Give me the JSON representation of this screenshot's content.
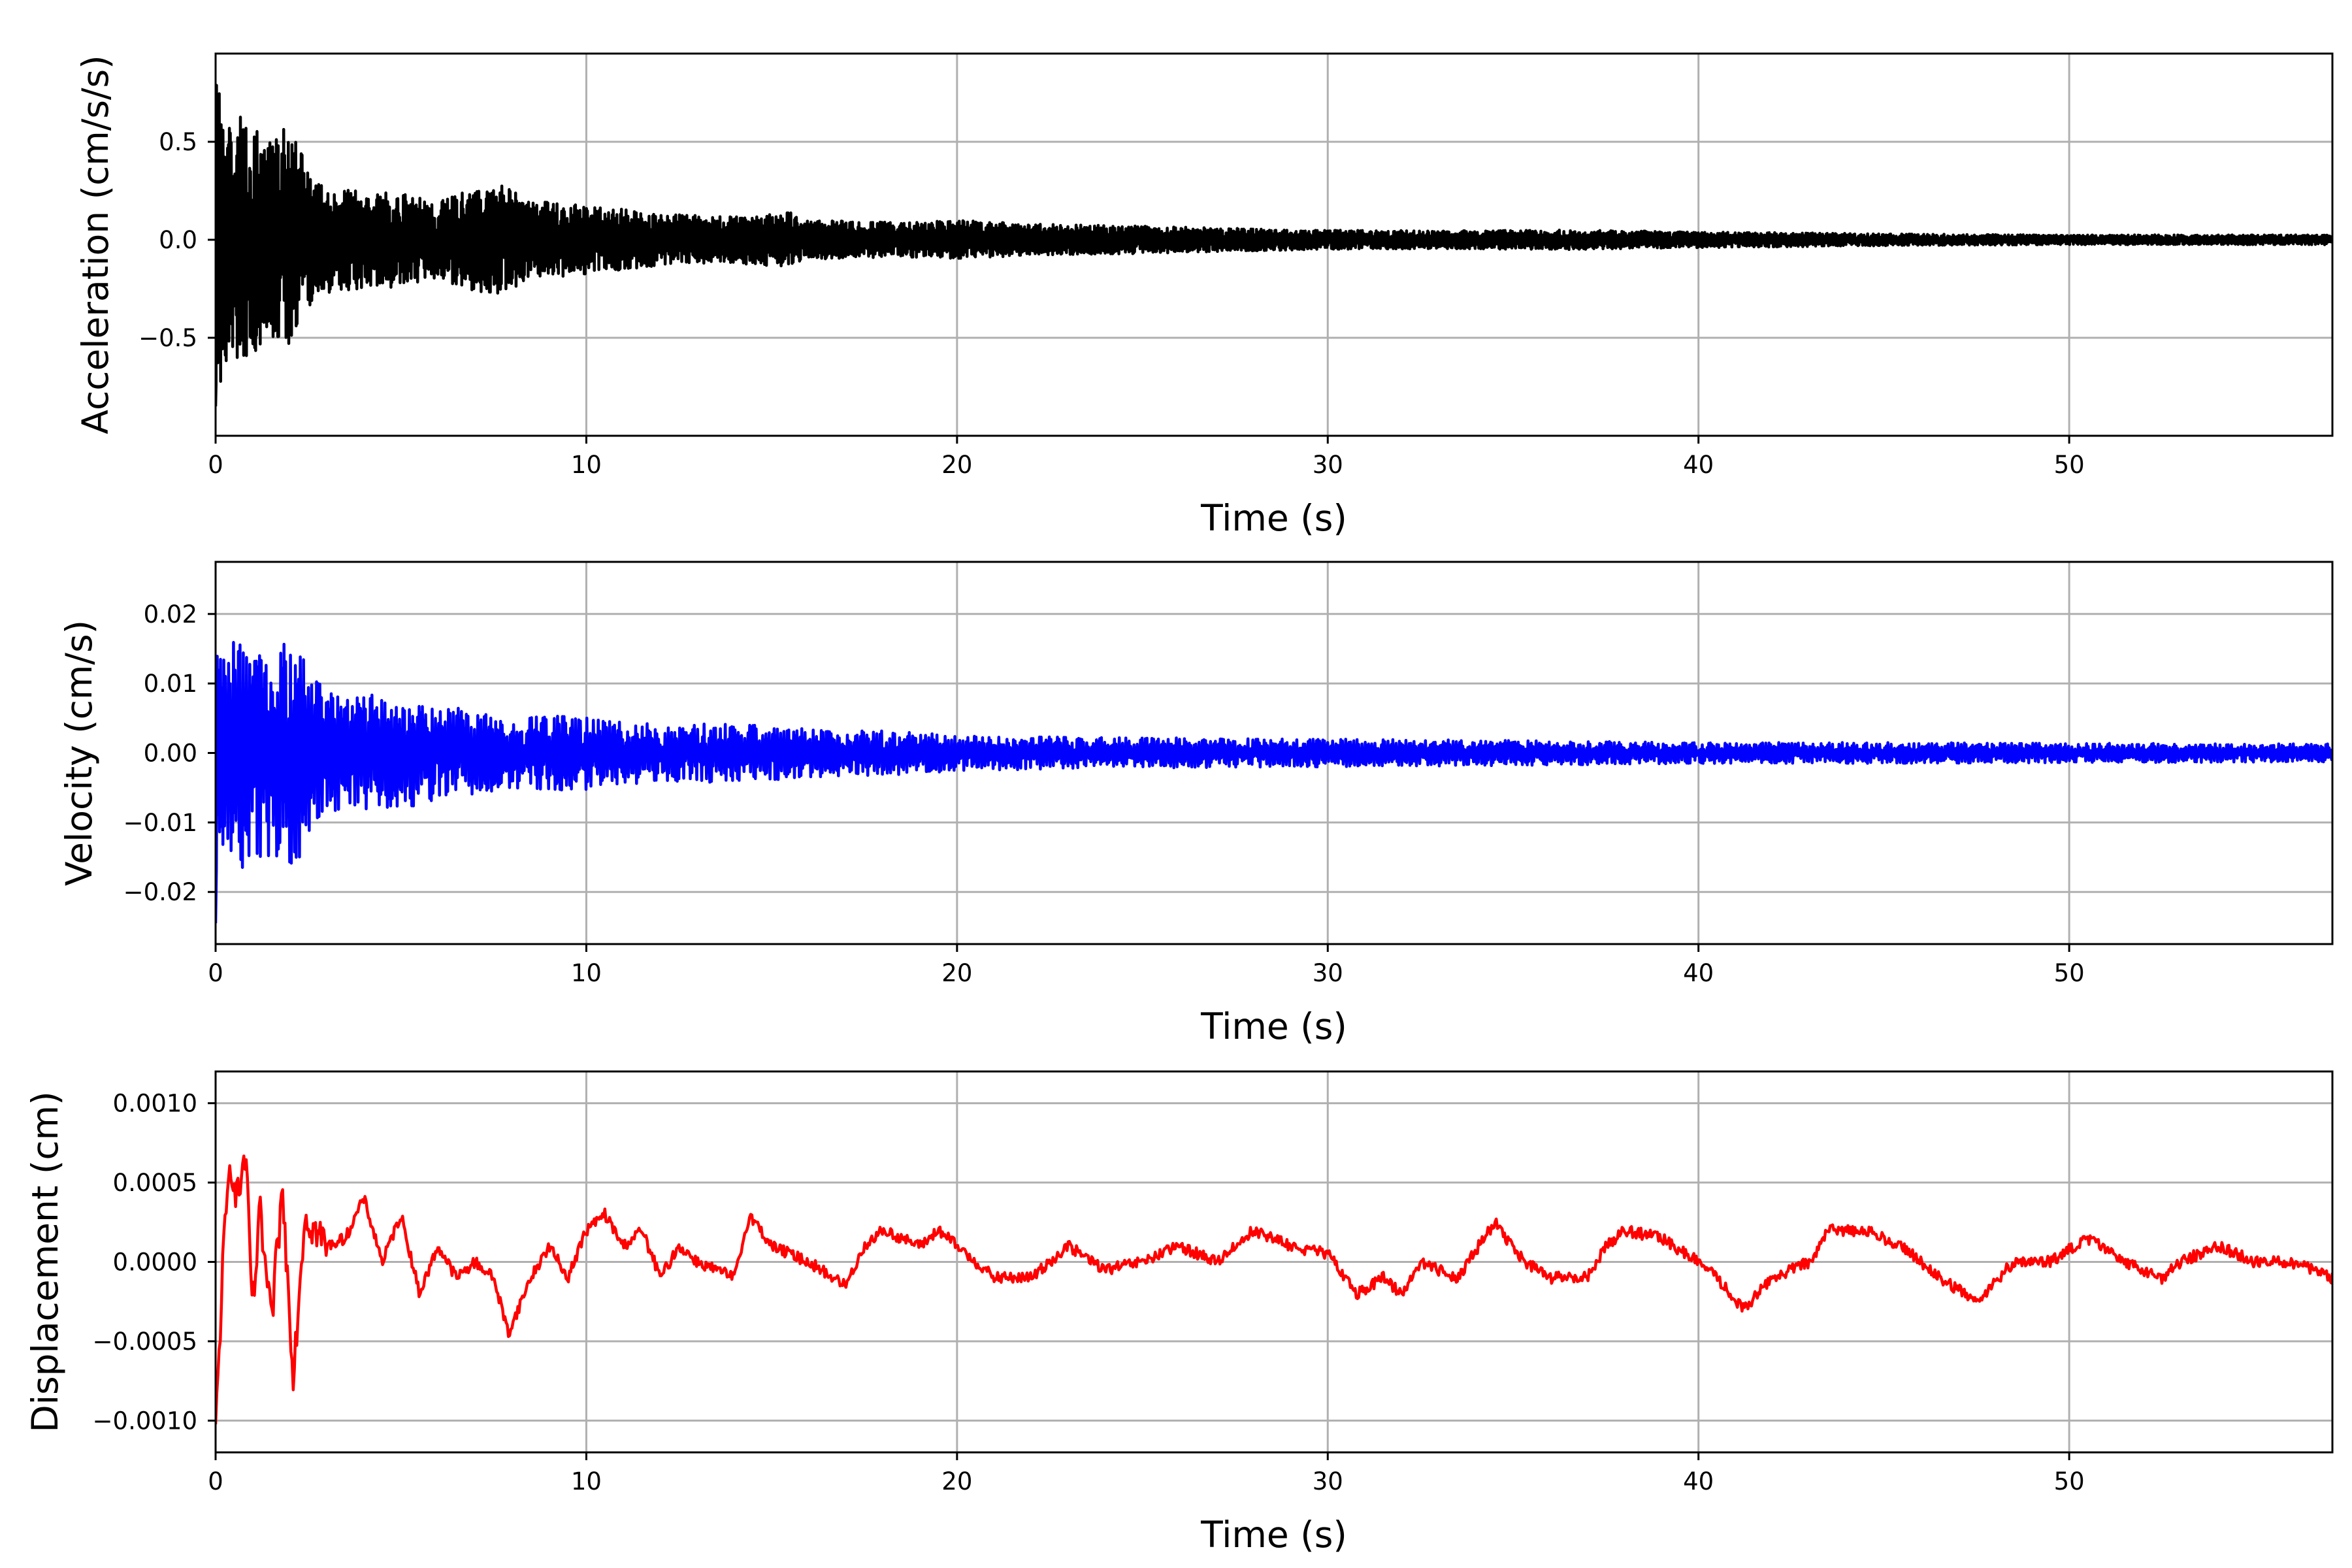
{
  "chart_data": [
    {
      "type": "line",
      "xlabel": "Time (s)",
      "ylabel": "Acceleration (cm/s/s)",
      "xlim": [
        0,
        57.1
      ],
      "ylim": [
        -1.0,
        0.95
      ],
      "xticks": [
        0,
        10,
        20,
        30,
        40,
        50
      ],
      "xtick_labels": [
        "0",
        "10",
        "20",
        "30",
        "40",
        "50"
      ],
      "yticks": [
        -0.5,
        0.0,
        0.5
      ],
      "ytick_labels": [
        "−0.5",
        "0.0",
        "0.5"
      ],
      "grid": true,
      "series": [
        {
          "color": "#000000",
          "x": [
            0,
            0.1,
            0.2,
            0.3,
            0.4,
            0.5,
            0.6,
            0.8,
            1.0,
            1.2,
            1.5,
            2.0,
            2.2,
            2.5,
            3.0,
            4.0,
            5.0,
            6.0,
            7.5,
            8.5,
            10.0,
            12.0,
            14.0,
            15.5,
            16.0,
            18.0,
            20.0,
            22.0,
            25.0,
            27.0,
            30.0,
            33.0,
            36.5,
            40.0,
            43.0,
            45.0,
            50.0,
            55.0,
            57.1
          ],
          "envelope": [
            0.89,
            0.88,
            0.7,
            0.62,
            0.6,
            0.6,
            0.64,
            0.6,
            0.58,
            0.55,
            0.5,
            0.6,
            0.5,
            0.35,
            0.28,
            0.25,
            0.24,
            0.2,
            0.3,
            0.2,
            0.18,
            0.13,
            0.12,
            0.14,
            0.1,
            0.09,
            0.1,
            0.08,
            0.07,
            0.06,
            0.05,
            0.045,
            0.05,
            0.04,
            0.035,
            0.03,
            0.025,
            0.025,
            0.025
          ]
        }
      ]
    },
    {
      "type": "line",
      "xlabel": "Time (s)",
      "ylabel": "Velocity (cm/s)",
      "xlim": [
        0,
        57.1
      ],
      "ylim": [
        -0.0275,
        0.0275
      ],
      "xticks": [
        0,
        10,
        20,
        30,
        40,
        50
      ],
      "xtick_labels": [
        "0",
        "10",
        "20",
        "30",
        "40",
        "50"
      ],
      "yticks": [
        -0.02,
        -0.01,
        0.0,
        0.01,
        0.02
      ],
      "ytick_labels": [
        "−0.02",
        "−0.01",
        "0.00",
        "0.01",
        "0.02"
      ],
      "grid": true,
      "series": [
        {
          "color": "#0000ff",
          "x": [
            0,
            0.1,
            0.3,
            0.6,
            1.0,
            1.5,
            2.0,
            2.3,
            2.6,
            3.0,
            4.0,
            5.0,
            6.0,
            7.0,
            8.0,
            9.5,
            10.5,
            12.0,
            14.0,
            16.0,
            19.0,
            20.0,
            25.0,
            30.0,
            35.0,
            40.0,
            45.0,
            50.0,
            57.1
          ],
          "envelope": [
            0.024,
            0.017,
            0.015,
            0.017,
            0.016,
            0.015,
            0.017,
            0.016,
            0.011,
            0.009,
            0.0085,
            0.008,
            0.007,
            0.006,
            0.005,
            0.0055,
            0.005,
            0.004,
            0.0045,
            0.0035,
            0.003,
            0.0025,
            0.0022,
            0.002,
            0.0018,
            0.0015,
            0.0015,
            0.0014,
            0.0013
          ]
        }
      ]
    },
    {
      "type": "line",
      "xlabel": "Time (s)",
      "ylabel": "Displacement (cm)",
      "xlim": [
        0,
        57.1
      ],
      "ylim": [
        -0.0012,
        0.0012
      ],
      "xticks": [
        0,
        10,
        20,
        30,
        40,
        50
      ],
      "xtick_labels": [
        "0",
        "10",
        "20",
        "30",
        "40",
        "50"
      ],
      "yticks": [
        -0.001,
        -0.0005,
        0.0,
        0.0005,
        0.001
      ],
      "ytick_labels": [
        "−0.0010",
        "−0.0005",
        "0.0000",
        "0.0005",
        "0.0010"
      ],
      "grid": true,
      "series": [
        {
          "color": "#ff0000",
          "x": [
            0,
            0.05,
            0.2,
            0.4,
            0.6,
            0.8,
            1.0,
            1.2,
            1.5,
            1.8,
            2.1,
            2.4,
            3.0,
            3.5,
            4.0,
            4.5,
            5.0,
            5.5,
            6.0,
            6.5,
            7.0,
            7.5,
            7.9,
            8.5,
            9.0,
            9.5,
            10.0,
            10.5,
            11.0,
            11.5,
            12.0,
            12.5,
            13.0,
            14.0,
            14.4,
            15.0,
            16.0,
            17.0,
            17.5,
            18.0,
            19.0,
            19.5,
            20.0,
            21.0,
            22.0,
            23.0,
            24.0,
            25.0,
            26.0,
            27.0,
            28.0,
            29.0,
            30.0,
            30.8,
            31.5,
            32.0,
            32.5,
            33.5,
            34.5,
            35.3,
            36.0,
            37.0,
            37.5,
            38.0,
            39.0,
            40.0,
            40.5,
            41.2,
            42.0,
            43.0,
            43.5,
            44.5,
            45.5,
            46.5,
            47.5,
            48.5,
            49.5,
            50.5,
            51.5,
            52.5,
            53.0,
            54.0,
            55.0,
            56.0,
            57.1
          ],
          "y": [
            -0.0011,
            -0.0008,
            0.0,
            0.00065,
            0.0004,
            0.00068,
            -0.0003,
            0.0003,
            -0.0004,
            0.00045,
            -0.0007,
            0.0003,
            0.0001,
            0.00015,
            0.0004,
            0.0,
            0.0003,
            -0.0002,
            0.0001,
            -0.0001,
            0.0,
            -0.0001,
            -0.00045,
            -0.0001,
            0.0001,
            -0.0001,
            0.0002,
            0.0003,
            0.0001,
            0.0002,
            -0.0001,
            0.0001,
            0.0,
            -0.0001,
            0.0003,
            0.0001,
            0.0,
            -0.00015,
            0.0001,
            0.0002,
            0.0001,
            0.0002,
            0.0001,
            -0.0001,
            -0.0001,
            0.0001,
            -5e-05,
            0.0,
            0.0001,
            0.0,
            0.0002,
            0.0001,
            5e-05,
            -0.0002,
            -0.0001,
            -0.0002,
            0.0,
            -0.0001,
            0.00025,
            0.0,
            -0.0001,
            -0.0001,
            0.0001,
            0.0002,
            0.00015,
            0.0,
            -0.0001,
            -0.0003,
            -0.0001,
            0.0,
            0.0002,
            0.0002,
            0.0001,
            -0.0001,
            -0.00025,
            0.0,
            0.0,
            0.00015,
            0.0,
            -0.0001,
            0.0,
            0.0001,
            0.0,
            0.0,
            -0.0001
          ]
        }
      ]
    }
  ]
}
